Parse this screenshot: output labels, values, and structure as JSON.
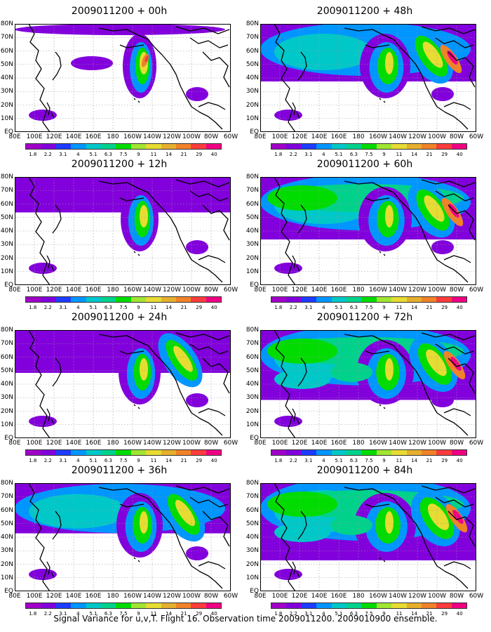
{
  "caption": "Signal Variance for u,v,T. Flight 16. Observation time 2009011200. 2009010900 ensemble.",
  "map": {
    "lat_labels": [
      "80N",
      "70N",
      "60N",
      "50N",
      "40N",
      "30N",
      "20N",
      "10N",
      "EQ"
    ],
    "lon_labels": [
      "80E",
      "100E",
      "120E",
      "140E",
      "160E",
      "180",
      "160W",
      "140W",
      "120W",
      "100W",
      "80W",
      "60W"
    ]
  },
  "colorbar": {
    "levels": [
      "1.8",
      "2.2",
      "3.1",
      "4",
      "5.1",
      "6.3",
      "7.5",
      "9",
      "11",
      "14",
      "21",
      "29",
      "40"
    ],
    "colors": [
      "#a000c8",
      "#8200dc",
      "#1e3cff",
      "#0096ff",
      "#00c8c8",
      "#00d28c",
      "#00dc00",
      "#a0e632",
      "#e6dc32",
      "#e6af2d",
      "#f08228",
      "#fa3c3c",
      "#f00082"
    ]
  },
  "panels": [
    {
      "title": "2009011200 + 00h",
      "intensity": 0.0
    },
    {
      "title": "2009011200 + 48h",
      "intensity": 0.6
    },
    {
      "title": "2009011200 + 12h",
      "intensity": 0.15
    },
    {
      "title": "2009011200 + 60h",
      "intensity": 0.7
    },
    {
      "title": "2009011200 + 24h",
      "intensity": 0.3
    },
    {
      "title": "2009011200 + 72h",
      "intensity": 0.85
    },
    {
      "title": "2009011200 + 36h",
      "intensity": 0.45
    },
    {
      "title": "2009011200 + 84h",
      "intensity": 1.0
    }
  ]
}
